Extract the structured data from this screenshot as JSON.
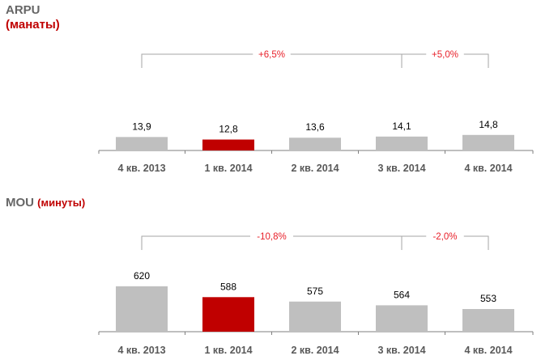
{
  "charts": [
    {
      "title": "ARPU",
      "unit": "(манаты)",
      "annotations": [
        {
          "from": 0,
          "to": 3,
          "label": "+6,5%"
        },
        {
          "from": 3,
          "to": 4,
          "label": "+5,0%"
        }
      ]
    },
    {
      "title": "MOU",
      "unit": "(минуты)",
      "annotations": [
        {
          "from": 0,
          "to": 3,
          "label": "-10,8%"
        },
        {
          "from": 3,
          "to": 4,
          "label": "-2,0%"
        }
      ]
    }
  ],
  "colors": {
    "bar": "#bfbfbf",
    "highlight": "#c00000",
    "axis": "#7f7f7f",
    "bracket": "#a6a6a6",
    "annotation": "#e8202a",
    "value": "#000000",
    "category": "#595959"
  },
  "chart_data": [
    {
      "type": "bar",
      "title": "ARPU",
      "ylabel": "(манаты)",
      "categories": [
        "4 кв. 2013",
        "1 кв. 2014",
        "2 кв. 2014",
        "3 кв. 2014",
        "4 кв. 2014"
      ],
      "values": [
        13.9,
        12.8,
        13.6,
        14.1,
        14.8
      ],
      "value_labels": [
        "13,9",
        "12,8",
        "13,6",
        "14,1",
        "14,8"
      ],
      "highlight_index": 1,
      "grid": false,
      "legend": "none"
    },
    {
      "type": "bar",
      "title": "MOU",
      "ylabel": "(минуты)",
      "categories": [
        "4 кв. 2013",
        "1 кв. 2014",
        "2 кв. 2014",
        "3 кв. 2014",
        "4 кв. 2014"
      ],
      "values": [
        620,
        588,
        575,
        564,
        553
      ],
      "value_labels": [
        "620",
        "588",
        "575",
        "564",
        "553"
      ],
      "highlight_index": 1,
      "grid": false,
      "legend": "none"
    }
  ]
}
